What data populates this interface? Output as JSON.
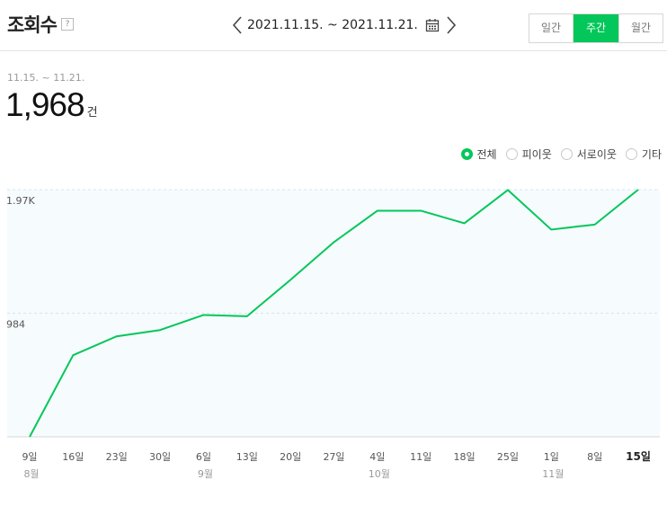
{
  "header": {
    "title": "조회수",
    "help": "?",
    "date_range": "2021.11.15. ~ 2021.11.21.",
    "period_buttons": [
      "일간",
      "주간",
      "월간"
    ],
    "active_period": "주간"
  },
  "summary": {
    "range": "11.15. ~ 11.21.",
    "total": "1,968",
    "unit": "건"
  },
  "legend": {
    "options": [
      "전체",
      "피이웃",
      "서로이웃",
      "기타"
    ],
    "selected": "전체"
  },
  "colors": {
    "accent": "#03c75a",
    "plot_bg": "#f6fbfd",
    "grid": "#d5e6ef"
  },
  "chart_data": {
    "type": "area",
    "y_tick_labels": [
      "1.97K",
      "984"
    ],
    "y_ticks": [
      1968,
      984
    ],
    "ylim": [
      0,
      1968
    ],
    "x_tick_labels": [
      "9일",
      "16일",
      "23일",
      "30일",
      "6일",
      "13일",
      "20일",
      "27일",
      "4일",
      "11일",
      "18일",
      "25일",
      "1일",
      "8일",
      "15일"
    ],
    "month_labels": [
      "8월",
      "",
      "",
      "",
      "9월",
      "",
      "",
      "",
      "10월",
      "",
      "",
      "",
      "11월",
      "",
      ""
    ],
    "values": [
      0,
      650,
      800,
      850,
      970,
      960,
      1250,
      1550,
      1800,
      1800,
      1700,
      1965,
      1650,
      1690,
      1968
    ],
    "grid": true
  }
}
